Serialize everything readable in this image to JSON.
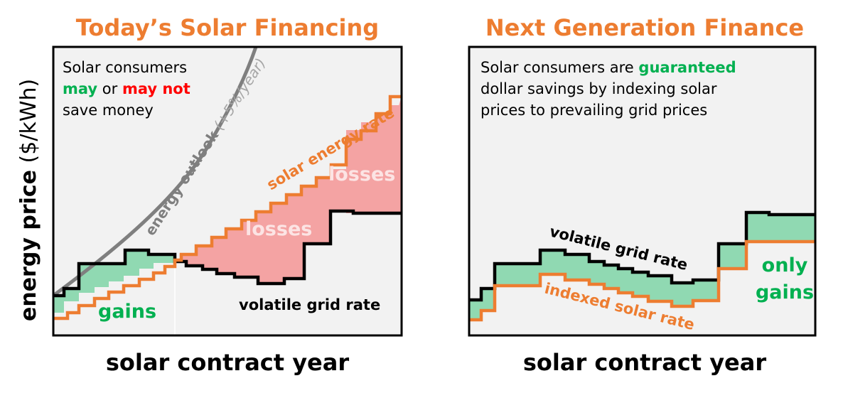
{
  "colors": {
    "accent_orange": "#ED7D31",
    "gain_green": "#00B050",
    "loss_red": "#FF0000",
    "outlook_gray": "#7F7F7F",
    "outlook_text_gray": "#A6A6A6",
    "gain_fill": "#90D9B2",
    "loss_fill": "#F4A3A3",
    "panel_bg": "#F2F2F2"
  },
  "y_axis_label": {
    "bold": "energy price",
    "normal": "($/kWh)"
  },
  "left_panel": {
    "title": "Today’s Solar Financing",
    "x_label": "solar contract year",
    "note": {
      "line1": "Solar consumers",
      "may": "may",
      "or": " or ",
      "may_not": "may not",
      "line3": "save money"
    },
    "outlook_label": "energy outlook",
    "outlook_rate": " (+5%/year)",
    "solar_rate_label": "solar energy rate",
    "grid_rate_label": "volatile grid rate",
    "losses_label_1": "losses",
    "losses_label_2": "losses",
    "gains_label": "gains"
  },
  "right_panel": {
    "title": "Next Generation Finance",
    "x_label": "solar contract year",
    "note": {
      "line1_pre": "Solar consumers are ",
      "guaranteed": "guaranteed",
      "line2": "dollar savings by indexing solar",
      "line3": "prices to prevailing grid prices"
    },
    "grid_rate_label": "volatile grid rate",
    "indexed_rate_label": "indexed solar rate",
    "gains_label_1": "only",
    "gains_label_2": "gains"
  }
}
